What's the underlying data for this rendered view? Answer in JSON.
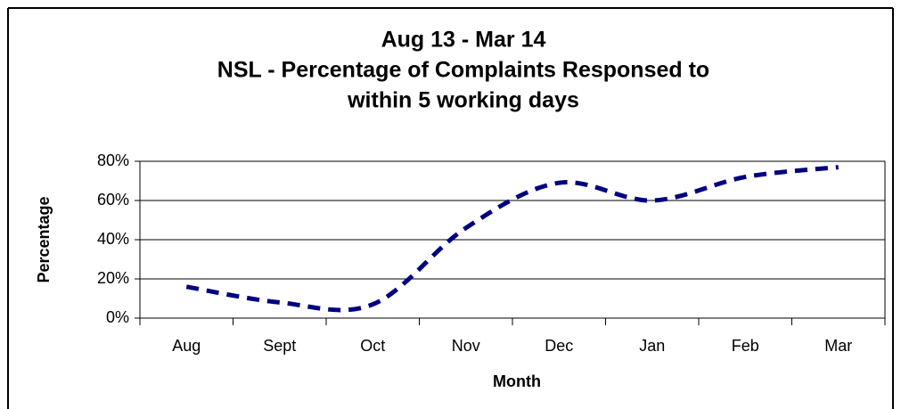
{
  "chart_data": {
    "type": "line",
    "title": [
      "Aug 13 - Mar 14",
      "NSL - Percentage of Complaints Responsed to",
      "within  5 working days"
    ],
    "x_label": "Month",
    "y_label": "Percentage",
    "categories": [
      "Aug",
      "Sept",
      "Oct",
      "Nov",
      "Dec",
      "Jan",
      "Feb",
      "Mar"
    ],
    "series": [
      {
        "name": "Percentage",
        "color": "#000080",
        "values": [
          16,
          8,
          7,
          46,
          69,
          60,
          72,
          77
        ]
      }
    ],
    "ylim": [
      0,
      80
    ],
    "yticks": [
      {
        "value": 0,
        "label": "0%"
      },
      {
        "value": 20,
        "label": "20%"
      },
      {
        "value": 40,
        "label": "40%"
      },
      {
        "value": 60,
        "label": "60%"
      },
      {
        "value": 80,
        "label": "80%"
      }
    ],
    "grid": true,
    "smooth": true,
    "dashed": true
  }
}
